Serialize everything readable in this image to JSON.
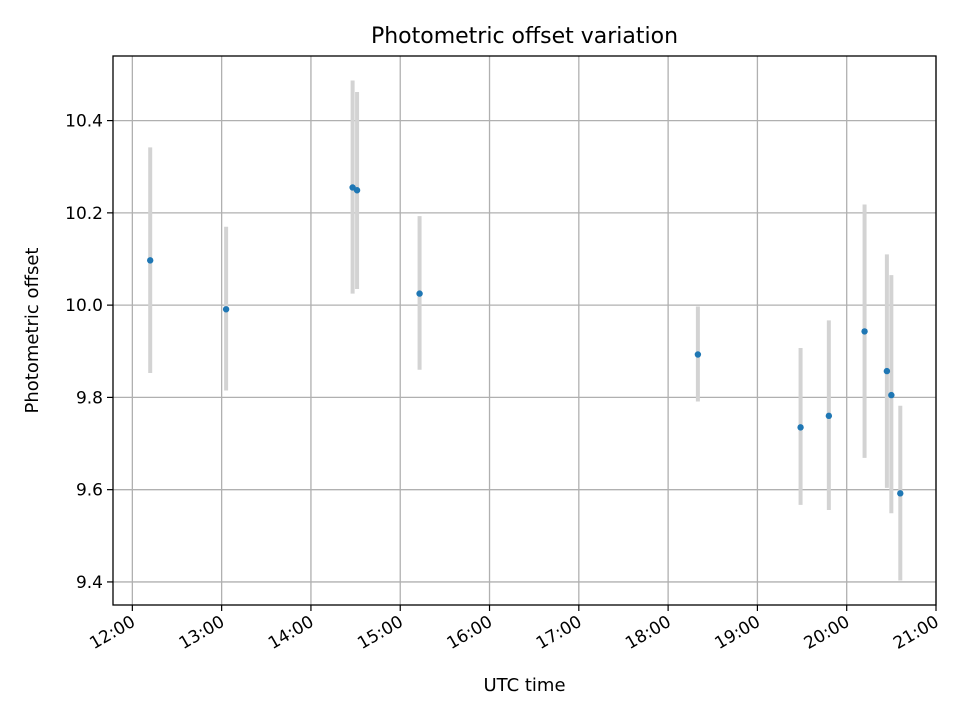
{
  "chart_data": {
    "type": "scatter",
    "title": "Photometric offset variation",
    "xlabel": "UTC time",
    "ylabel": "Photometric offset",
    "x_tick_labels": [
      "12:00",
      "13:00",
      "14:00",
      "15:00",
      "16:00",
      "17:00",
      "18:00",
      "19:00",
      "20:00",
      "21:00"
    ],
    "y_tick_labels": [
      "9.4",
      "9.6",
      "9.8",
      "10.0",
      "10.2",
      "10.4"
    ],
    "xlim": [
      "11:47",
      "21:00"
    ],
    "ylim": [
      9.35,
      10.54
    ],
    "grid": true,
    "error_bar_color": "#d3d3d3",
    "marker_color": "#1f77b4",
    "points": [
      {
        "x": "12:12",
        "y": 10.097,
        "ylow": 9.853,
        "yhigh": 10.342
      },
      {
        "x": "13:03",
        "y": 9.991,
        "ylow": 9.815,
        "yhigh": 10.17
      },
      {
        "x": "14:28",
        "y": 10.255,
        "ylow": 10.025,
        "yhigh": 10.487
      },
      {
        "x": "14:31",
        "y": 10.249,
        "ylow": 10.035,
        "yhigh": 10.462
      },
      {
        "x": "15:13",
        "y": 10.025,
        "ylow": 9.86,
        "yhigh": 10.193
      },
      {
        "x": "18:20",
        "y": 9.893,
        "ylow": 9.791,
        "yhigh": 9.997
      },
      {
        "x": "19:29",
        "y": 9.735,
        "ylow": 9.567,
        "yhigh": 9.907
      },
      {
        "x": "19:48",
        "y": 9.76,
        "ylow": 9.556,
        "yhigh": 9.967
      },
      {
        "x": "20:12",
        "y": 9.943,
        "ylow": 9.669,
        "yhigh": 10.218
      },
      {
        "x": "20:27",
        "y": 9.857,
        "ylow": 9.604,
        "yhigh": 10.11
      },
      {
        "x": "20:30",
        "y": 9.805,
        "ylow": 9.549,
        "yhigh": 10.065
      },
      {
        "x": "20:36",
        "y": 9.592,
        "ylow": 9.403,
        "yhigh": 9.782
      }
    ]
  }
}
